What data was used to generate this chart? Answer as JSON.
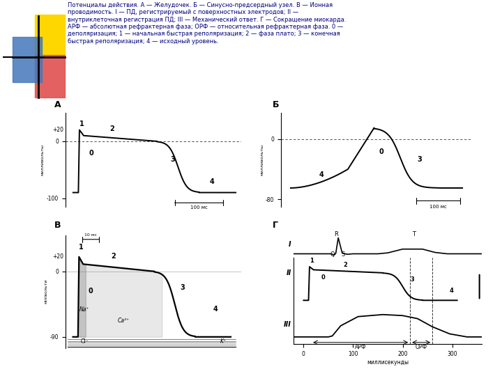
{
  "title_text": "Потенциалы действия. А — Желудочек. Б — Синусно-предсердный узел. В — Ионная\nпроводимость. I — ПД, регистрируемый с поверхностных электродов; II —\nвнутриклеточная регистрация ПД; III — Механический ответ. Г — Сокращение миокарда.\nАРФ — абсолютная рефрактерная фаза; ОРФ — относительная рефрактерная фаза. 0 —\nдеполяризация; 1 — начальная быстрая реполяризация; 2 — фаза плато; 3 — конечная\nбыстрая реполяризация; 4 — исходный уровень.",
  "bg_color": "#ffffff",
  "text_color": "#000080",
  "label_A": "А",
  "label_B": "Б",
  "label_V": "В",
  "label_G": "Г",
  "logo_yellow": "#FFD700",
  "logo_red": "#E05050",
  "logo_blue": "#4477BB"
}
